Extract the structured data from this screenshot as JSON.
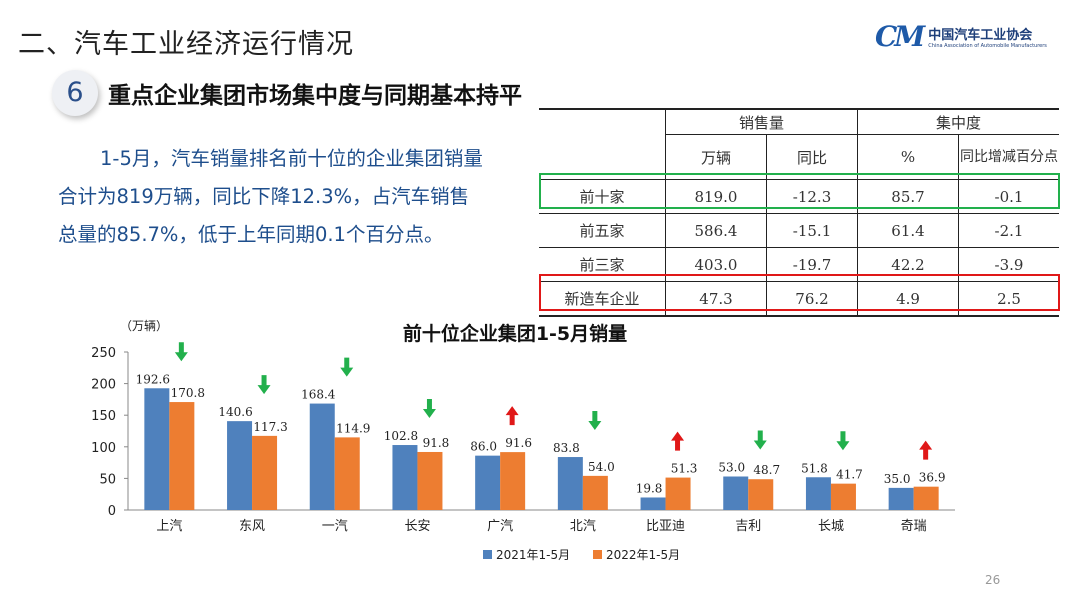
{
  "header": {
    "section_title": "二、汽车工业经济运行情况",
    "logo_cn": "中国汽车工业协会",
    "logo_en": "China Association of Automobile Manufacturers",
    "logo_mark": "CM"
  },
  "subtitle": {
    "number": "6",
    "text": "重点企业集团市场集中度与同期基本持平"
  },
  "paragraph": "1-5月，汽车销量排名前十位的企业集团销量合计为819万辆，同比下降12.3%，占汽车销售总量的85.7%，低于上年同期0.1个百分点。",
  "table": {
    "group_headers": [
      "销售量",
      "集中度"
    ],
    "sub_headers": [
      "万辆",
      "同比",
      "%",
      "同比增减百分点"
    ],
    "rows": [
      {
        "label": "前十家",
        "cells": [
          "819.0",
          "-12.3",
          "85.7",
          "-0.1"
        ],
        "highlight": "#22b04c"
      },
      {
        "label": "前五家",
        "cells": [
          "586.4",
          "-15.1",
          "61.4",
          "-2.1"
        ]
      },
      {
        "label": "前三家",
        "cells": [
          "403.0",
          "-19.7",
          "42.2",
          "-3.9"
        ]
      },
      {
        "label": "新造车企业",
        "cells": [
          "47.3",
          "76.2",
          "4.9",
          "2.5"
        ],
        "highlight": "#e01818"
      }
    ]
  },
  "chart_data": {
    "type": "bar",
    "title": "前十位企业集团1-5月销量",
    "ylabel": "（万辆）",
    "ylim": [
      0,
      250
    ],
    "yticks": [
      "0",
      "50",
      "100",
      "150",
      "200",
      "250"
    ],
    "categories": [
      "上汽",
      "东风",
      "一汽",
      "长安",
      "广汽",
      "北汽",
      "比亚迪",
      "吉利",
      "长城",
      "奇瑞"
    ],
    "series": [
      {
        "name": "2021年1-5月",
        "color": "#4f81bd",
        "values": [
          192.6,
          140.6,
          168.4,
          102.8,
          86.0,
          83.8,
          19.8,
          53.0,
          51.8,
          35.0
        ],
        "labels": [
          "192.6",
          "140.6",
          "168.4",
          "102.8",
          "86.0",
          "83.8",
          "19.8",
          "53.0",
          "51.8",
          "35.0"
        ]
      },
      {
        "name": "2022年1-5月",
        "color": "#ed7d31",
        "values": [
          170.8,
          117.3,
          114.9,
          91.8,
          91.6,
          54.0,
          51.3,
          48.7,
          41.7,
          36.9
        ],
        "labels": [
          "170.8",
          "117.3",
          "114.9",
          "91.8",
          "91.6",
          "54.0",
          "51.3",
          "48.7",
          "41.7",
          "36.9"
        ]
      }
    ],
    "trend_arrows": [
      "down",
      "down",
      "down",
      "down",
      "up",
      "down",
      "up",
      "down",
      "down",
      "up"
    ],
    "arrow_colors": {
      "up": "#e01818",
      "down": "#22b04c"
    },
    "legend": "bottom",
    "grid": false
  },
  "page_number": "26"
}
